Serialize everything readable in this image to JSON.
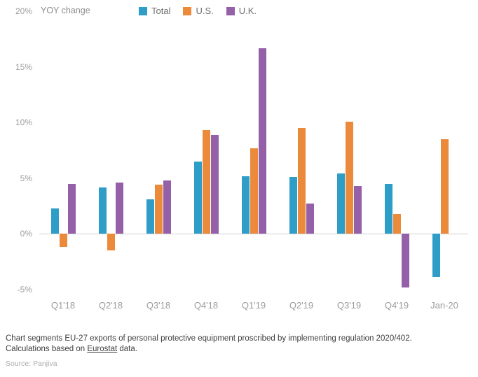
{
  "chart_data": {
    "type": "bar",
    "title": "",
    "ylabel": "YOY change",
    "categories": [
      "Q1'18",
      "Q2'18",
      "Q3'18",
      "Q4'18",
      "Q1'19",
      "Q2'19",
      "Q3'19",
      "Q4'19",
      "Jan-20"
    ],
    "series": [
      {
        "name": "Total",
        "color": "#2E9EC9",
        "values": [
          2.3,
          4.2,
          3.1,
          6.5,
          5.2,
          5.1,
          5.4,
          4.5,
          -3.9
        ]
      },
      {
        "name": "U.S.",
        "color": "#EC8A3C",
        "values": [
          -1.2,
          -1.5,
          4.4,
          9.3,
          7.7,
          9.5,
          10.1,
          1.8,
          8.5
        ]
      },
      {
        "name": "U.K.",
        "color": "#9460A8",
        "values": [
          4.5,
          4.6,
          4.8,
          8.9,
          16.7,
          2.7,
          4.3,
          -4.8,
          0
        ]
      }
    ],
    "ylim": [
      -5,
      20
    ],
    "yticks": [
      20,
      15,
      10,
      5,
      0,
      -5
    ],
    "ytick_format": "%",
    "legend_position": "top",
    "grid": false
  },
  "caption": {
    "line1": "Chart segments EU-27 exports of personal protective equipment proscribed by implementing regulation 2020/402.",
    "line2_prefix": "Calculations based on ",
    "line2_link": "Eurostat",
    "line2_suffix": " data."
  },
  "source": {
    "label": "Source:",
    "name": "Panjiva"
  }
}
